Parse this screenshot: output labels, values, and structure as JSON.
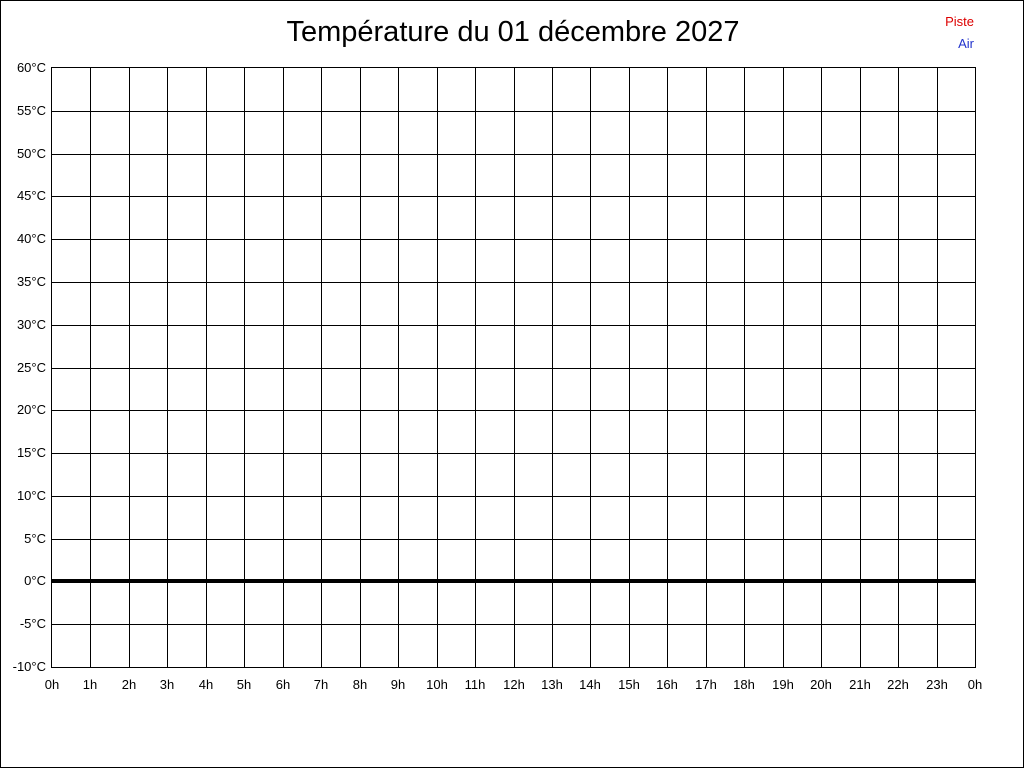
{
  "header": {
    "title": "Température du 01 décembre 2027"
  },
  "legend": {
    "items": [
      {
        "label": "Piste",
        "color": "#dd0000"
      },
      {
        "label": "Air",
        "color": "#2233cc"
      }
    ]
  },
  "colors": {
    "grid": "#000000",
    "background": "#ffffff",
    "piste": "#dd0000",
    "air": "#2233cc"
  },
  "chart_data": {
    "type": "line",
    "title": "Température du 01 décembre 2027",
    "xlabel": "",
    "ylabel": "",
    "ylim": [
      -10,
      60
    ],
    "y_tick_step": 5,
    "y_tick_labels": [
      "60°C",
      "55°C",
      "50°C",
      "45°C",
      "40°C",
      "35°C",
      "30°C",
      "25°C",
      "20°C",
      "15°C",
      "10°C",
      "5°C",
      "0°C",
      "-5°C",
      "-10°C"
    ],
    "y_tick_values": [
      60,
      55,
      50,
      45,
      40,
      35,
      30,
      25,
      20,
      15,
      10,
      5,
      0,
      -5,
      -10
    ],
    "x_tick_labels": [
      "0h",
      "1h",
      "2h",
      "3h",
      "4h",
      "5h",
      "6h",
      "7h",
      "8h",
      "9h",
      "10h",
      "11h",
      "12h",
      "13h",
      "14h",
      "15h",
      "16h",
      "17h",
      "18h",
      "19h",
      "20h",
      "21h",
      "22h",
      "23h",
      "0h"
    ],
    "grid": true,
    "zero_line": {
      "value": 0,
      "bold": true
    },
    "legend_position": "top-right",
    "series": [
      {
        "name": "Piste",
        "color": "#dd0000",
        "values": []
      },
      {
        "name": "Air",
        "color": "#2233cc",
        "values": []
      }
    ]
  }
}
